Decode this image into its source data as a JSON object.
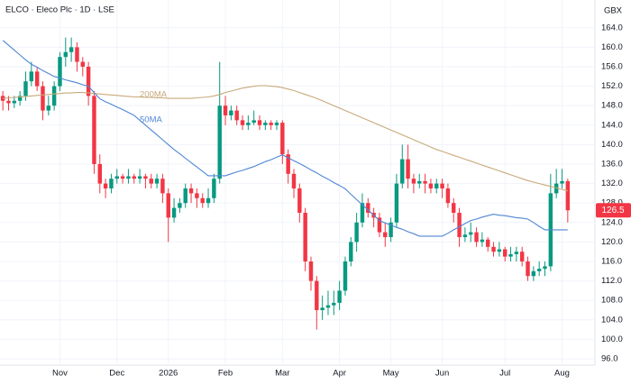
{
  "chart_data": {
    "type": "candlestick",
    "title": "ELCO · Eleco Plc · 1D · LSE",
    "unit": "GBX",
    "categories": [
      null,
      null,
      null,
      null,
      null,
      null,
      null,
      null,
      null,
      null,
      "Nov",
      null,
      null,
      null,
      null,
      null,
      null,
      null,
      null,
      null,
      "Dec",
      null,
      null,
      null,
      null,
      null,
      null,
      null,
      null,
      "2026",
      null,
      null,
      null,
      null,
      null,
      null,
      null,
      null,
      null,
      "Feb",
      null,
      null,
      null,
      null,
      null,
      null,
      null,
      null,
      null,
      "Mar",
      null,
      null,
      null,
      null,
      null,
      null,
      null,
      null,
      null,
      "Apr",
      null,
      null,
      null,
      null,
      null,
      null,
      null,
      null,
      "May",
      null,
      null,
      null,
      null,
      null,
      null,
      null,
      null,
      "Jun",
      null,
      null,
      null,
      null,
      null,
      null,
      null,
      null,
      null,
      null,
      "Jul",
      null,
      null,
      null,
      null,
      null,
      null,
      null,
      null,
      null,
      "Aug",
      null
    ],
    "open": [
      150,
      149,
      148.5,
      149,
      150,
      153,
      155,
      152,
      147,
      148,
      152,
      158,
      159,
      160,
      157,
      156,
      150,
      136,
      132,
      131,
      133,
      133.5,
      133,
      133.5,
      133,
      133.5,
      133,
      132,
      133,
      130,
      125,
      127,
      128,
      131,
      130,
      129,
      128,
      129,
      133,
      148,
      146,
      147,
      145,
      144,
      144.5,
      145,
      144,
      144.5,
      144,
      144.5,
      138,
      134,
      131,
      126,
      116,
      112,
      106,
      106.5,
      107,
      107.5,
      110,
      116,
      120,
      124,
      128,
      126,
      125,
      122,
      121,
      124,
      132,
      137,
      133,
      132,
      132.5,
      132,
      131,
      132,
      131,
      128,
      126,
      121,
      121.5,
      122,
      120,
      120.5,
      119,
      118,
      118.5,
      117,
      117.5,
      118,
      116,
      113,
      114,
      114.5,
      115,
      130,
      132,
      132.5
    ],
    "high": [
      151,
      150,
      150,
      151,
      155,
      157,
      156,
      153,
      150,
      153,
      159,
      162,
      162,
      161,
      158,
      157,
      151,
      138,
      133,
      134,
      135,
      134,
      135,
      134,
      135,
      134,
      134,
      134,
      134,
      131,
      129,
      129,
      132,
      132,
      131,
      130,
      131,
      134,
      157,
      150,
      148,
      148,
      146,
      146,
      147,
      146,
      145,
      145,
      145,
      145,
      139,
      135,
      132,
      127,
      117,
      113,
      109,
      110,
      110,
      112,
      117,
      121,
      126,
      130,
      129,
      127,
      126,
      124,
      125,
      134,
      140,
      140,
      134,
      134,
      134,
      133,
      133,
      133,
      132,
      129,
      127,
      123,
      124,
      123,
      122,
      121,
      120,
      120,
      119,
      119,
      119,
      119,
      117,
      115,
      116,
      116,
      134,
      135,
      135,
      133
    ],
    "low": [
      147,
      147,
      147.5,
      148,
      149,
      152,
      151,
      145,
      146,
      147,
      151,
      156,
      157,
      155,
      154,
      148,
      134,
      130,
      129,
      130,
      132,
      132,
      132,
      132,
      132,
      131,
      131,
      131,
      128,
      120,
      124,
      126,
      127,
      128,
      127,
      127,
      127,
      128,
      132,
      144,
      145,
      144,
      143,
      143,
      144,
      143,
      143,
      143,
      143,
      136,
      132,
      129,
      124,
      114,
      110,
      102,
      104,
      105,
      105,
      106,
      109,
      115,
      118,
      123,
      125,
      123,
      121,
      119,
      120,
      123,
      131,
      131,
      130,
      131,
      130,
      130,
      130,
      129,
      127,
      124,
      119,
      120,
      120,
      119,
      119,
      118,
      117,
      117,
      116,
      116,
      116,
      115,
      112,
      112,
      113,
      113,
      114,
      129,
      131,
      124
    ],
    "close": [
      149,
      148.5,
      149,
      150,
      153,
      155,
      152,
      147,
      148,
      152,
      158,
      159,
      160,
      157,
      156,
      150,
      136,
      132,
      131,
      133,
      133.5,
      133,
      133.5,
      133,
      133.5,
      133,
      132,
      133,
      130,
      125,
      127,
      128,
      131,
      130,
      129,
      128,
      129,
      133,
      148,
      146,
      147,
      145,
      144,
      144.5,
      145,
      144,
      144.5,
      144,
      144.5,
      138,
      134,
      131,
      126,
      116,
      112,
      106,
      106.5,
      107,
      107.5,
      110,
      116,
      120,
      124,
      128,
      126,
      125,
      122,
      121,
      124,
      132,
      137,
      133,
      132,
      132.5,
      132,
      131,
      132,
      131,
      128,
      126,
      121,
      121.5,
      122,
      120,
      120.5,
      119,
      118,
      118.5,
      117,
      117.5,
      118,
      116,
      113,
      114,
      114.5,
      115,
      130,
      132,
      132.5,
      126.5
    ],
    "up_color": "#089981",
    "down_color": "#f23645",
    "series": [
      {
        "name": "200MA",
        "color": "#c8a97a",
        "values": [
          149.5,
          149.6,
          149.7,
          149.8,
          149.9,
          150,
          150.1,
          150.2,
          150.3,
          150.4,
          150.5,
          150.6,
          150.6,
          150.7,
          150.7,
          150.6,
          150.5,
          150.4,
          150.3,
          150.2,
          150.1,
          150,
          149.9,
          149.8,
          149.8,
          149.7,
          149.7,
          149.6,
          149.6,
          149.5,
          149.5,
          149.5,
          149.5,
          149.5,
          149.6,
          149.7,
          149.8,
          150,
          150.3,
          150.7,
          151,
          151.3,
          151.6,
          151.8,
          152,
          152.1,
          152.1,
          152,
          151.9,
          151.7,
          151.4,
          151.1,
          150.7,
          150.3,
          149.9,
          149.5,
          149,
          148.5,
          148,
          147.5,
          147,
          146.5,
          146,
          145.5,
          145,
          144.5,
          144,
          143.5,
          143,
          142.5,
          142,
          141.5,
          141,
          140.5,
          140,
          139.5,
          139,
          138.6,
          138.2,
          137.8,
          137.4,
          137,
          136.6,
          136.2,
          135.8,
          135.4,
          135,
          134.6,
          134.2,
          133.8,
          133.4,
          133,
          132.6,
          132.3,
          132,
          131.7,
          131.4,
          131.1,
          130.8,
          130.5
        ]
      },
      {
        "name": "50MA",
        "color": "#4f86d4",
        "values": [
          161.4,
          160.4,
          159.4,
          158.4,
          157.4,
          156.5,
          155.9,
          155.2,
          154.6,
          154,
          153.7,
          153.3,
          153,
          152.7,
          152.3,
          152,
          150.7,
          149.4,
          148.8,
          148.3,
          147.7,
          147.2,
          146.6,
          146,
          145,
          144,
          143,
          142,
          141,
          140,
          139,
          138.1,
          137.2,
          136.3,
          135.4,
          134.5,
          133.6,
          133.6,
          133.6,
          133.6,
          134,
          134.4,
          134.7,
          135.1,
          135.5,
          136,
          136.5,
          136.9,
          137.4,
          137.9,
          137.3,
          136.7,
          136.1,
          135.5,
          134.8,
          134.2,
          133.5,
          132.9,
          132.2,
          131.6,
          130.9,
          129.8,
          128.7,
          127.6,
          126.6,
          125.5,
          124.4,
          123.9,
          123.5,
          123,
          122.6,
          122.1,
          121.7,
          121.2,
          121.2,
          121.2,
          121.2,
          121.2,
          121.8,
          122.5,
          123.1,
          123.8,
          124.4,
          124.7,
          125.1,
          125.4,
          125.7,
          125.5,
          125.4,
          125.2,
          125,
          124.9,
          124.7,
          124,
          123.2,
          122.5,
          122.5,
          122.5,
          122.5,
          122.5
        ]
      }
    ],
    "ylim": [
      94.7,
      169.7
    ],
    "yticks": [
      {
        "value": 96,
        "label": "96.0"
      },
      {
        "value": 100,
        "label": "100.0"
      },
      {
        "value": 104,
        "label": "104.0"
      },
      {
        "value": 108,
        "label": "108.0"
      },
      {
        "value": 112,
        "label": "112.0"
      },
      {
        "value": 116,
        "label": "116.0"
      },
      {
        "value": 120,
        "label": "120.0"
      },
      {
        "value": 124,
        "label": "124.0"
      },
      {
        "value": 128,
        "label": "128.0"
      },
      {
        "value": 132,
        "label": "132.0"
      },
      {
        "value": 136,
        "label": "136.0"
      },
      {
        "value": 140,
        "label": "140.0"
      },
      {
        "value": 144,
        "label": "144.0"
      },
      {
        "value": 148,
        "label": "148.0"
      },
      {
        "value": 152,
        "label": "152.0"
      },
      {
        "value": 156,
        "label": "156.0"
      },
      {
        "value": 160,
        "label": "160.0"
      },
      {
        "value": 164,
        "label": "164.0"
      }
    ],
    "grid": true
  }
}
